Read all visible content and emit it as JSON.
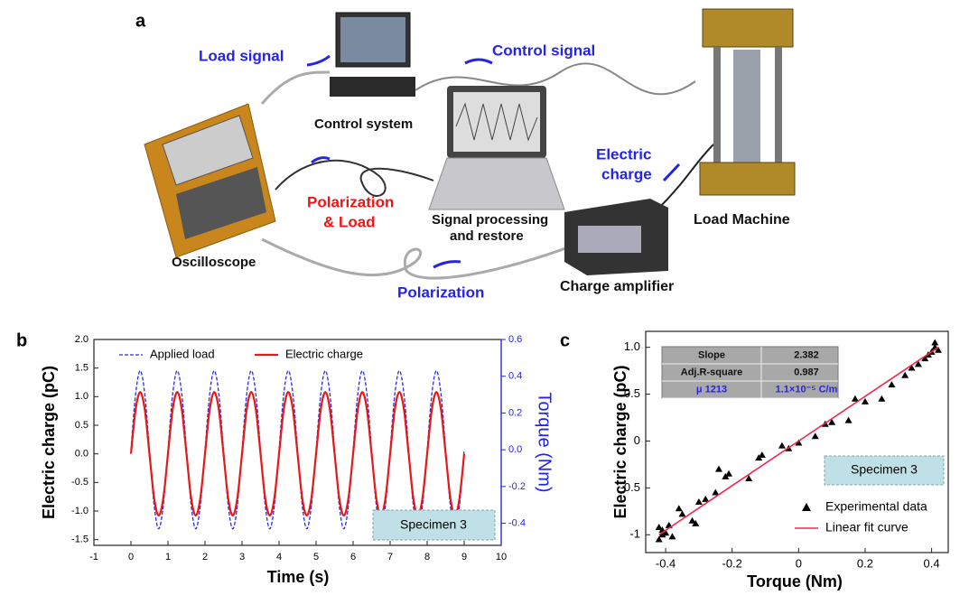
{
  "diagram": {
    "panel_label": "a",
    "labels": {
      "load_signal": "Load signal",
      "control_signal": "Control signal",
      "control_system": "Control system",
      "electric_charge_1": "Electric",
      "electric_charge_2": "charge",
      "load_machine": "Load Machine",
      "polarization_load_1": "Polarization",
      "polarization_load_2": "& Load",
      "signal_processing_1": "Signal processing",
      "signal_processing_2": "and restore",
      "oscilloscope": "Oscilloscope",
      "charge_amplifier": "Charge amplifier",
      "polarization": "Polarization"
    }
  },
  "chart_data": [
    {
      "type": "line",
      "panel_label": "b",
      "xlabel": "Time (s)",
      "ylabel": "Electric charge (pC)",
      "y2label": "Torque (Nm)",
      "annotation": "Specimen 3",
      "legend": "upper left",
      "x": [
        0,
        0.125,
        0.25,
        0.375,
        0.5,
        0.625,
        0.75,
        0.875,
        1,
        1.125,
        1.25,
        1.375,
        1.5,
        1.625,
        1.75,
        1.875,
        2,
        2.125,
        2.25,
        2.375,
        2.5,
        2.625,
        2.75,
        2.875,
        3,
        3.125,
        3.25,
        3.375,
        3.5,
        3.625,
        3.75,
        3.875,
        4,
        4.125,
        4.25,
        4.375,
        4.5,
        4.625,
        4.75,
        4.875,
        5,
        5.125,
        5.25,
        5.375,
        5.5,
        5.625,
        5.75,
        5.875,
        6,
        6.125,
        6.25,
        6.375,
        6.5,
        6.625,
        6.75,
        6.875,
        7,
        7.125,
        7.25,
        7.375,
        7.5,
        7.625,
        7.75,
        7.875,
        8,
        8.125,
        8.25,
        8.375,
        8.5,
        8.625,
        8.75,
        8.875,
        9
      ],
      "series": [
        {
          "name": "Applied load",
          "color": "#2a2ae8",
          "dashed": true,
          "axis": "y2",
          "values": [
            0,
            0.3,
            0.43,
            0.3,
            0,
            -0.3,
            -0.43,
            -0.3,
            0,
            0.3,
            0.43,
            0.3,
            0,
            -0.3,
            -0.43,
            -0.3,
            0,
            0.3,
            0.43,
            0.3,
            0,
            -0.3,
            -0.43,
            -0.3,
            0,
            0.3,
            0.43,
            0.3,
            0,
            -0.3,
            -0.43,
            -0.3,
            0,
            0.3,
            0.43,
            0.3,
            0,
            -0.3,
            -0.43,
            -0.3,
            0,
            0.3,
            0.43,
            0.3,
            0,
            -0.3,
            -0.43,
            -0.3,
            0,
            0.3,
            0.43,
            0.3,
            0,
            -0.3,
            -0.43,
            -0.3,
            0,
            0.3,
            0.43,
            0.3,
            0,
            -0.3,
            -0.43,
            -0.3,
            0,
            0.3,
            0.43,
            0.3,
            0,
            -0.3,
            -0.43,
            -0.3,
            0
          ]
        },
        {
          "name": "Electric charge",
          "color": "#e81818",
          "dashed": false,
          "values": [
            0,
            0.77,
            1.08,
            0.77,
            0,
            -0.77,
            -1.08,
            -0.77,
            0,
            0.77,
            1.08,
            0.77,
            0,
            -0.77,
            -1.08,
            -0.77,
            0,
            0.77,
            1.08,
            0.77,
            0,
            -0.77,
            -1.08,
            -0.77,
            0,
            0.77,
            1.08,
            0.77,
            0,
            -0.77,
            -1.08,
            -0.77,
            0,
            0.77,
            1.08,
            0.77,
            0,
            -0.77,
            -1.08,
            -0.77,
            0,
            0.77,
            1.08,
            0.77,
            0,
            -0.77,
            -1.08,
            -0.77,
            0,
            0.77,
            1.08,
            0.77,
            0,
            -0.77,
            -1.08,
            -0.77,
            0,
            0.77,
            1.08,
            0.77,
            0,
            -0.77,
            -1.08,
            -0.77,
            0,
            0.77,
            1.08,
            0.77,
            0,
            -0.77,
            -1.08,
            -0.77,
            0
          ]
        }
      ],
      "xlim": [
        -1,
        10
      ],
      "xticks": [
        -1,
        0,
        1,
        2,
        3,
        4,
        5,
        6,
        7,
        8,
        9,
        10
      ],
      "ylim": [
        -1.6,
        2.0
      ],
      "yticks": [
        -1.5,
        {
          "value": -1,
          "label": "-1.0"
        },
        -0.5,
        {
          "value": 0,
          "label": "0.0"
        },
        0.5,
        {
          "value": 1,
          "label": "1.0"
        },
        1.5,
        {
          "value": 2,
          "label": "2.0"
        }
      ],
      "y2lim": [
        -0.52,
        0.6
      ],
      "y2ticks": [
        -0.4,
        -0.2,
        {
          "value": 0,
          "label": "0.0"
        },
        0.2,
        0.4,
        0.6
      ]
    },
    {
      "type": "scatter",
      "panel_label": "c",
      "xlabel": "Torque (Nm)",
      "ylabel": "Electric charge (pC)",
      "annotation": "Specimen 3",
      "legend": "lower right",
      "table": {
        "rows": [
          [
            "Slope",
            "2.382"
          ],
          [
            "Adj.R-square",
            "0.987"
          ],
          [
            "μ 1213",
            "1.1×10⁻⁵ C/m"
          ]
        ]
      },
      "series": [
        {
          "name": "Experimental data",
          "color": "#000000",
          "marker": "triangle",
          "x": [
            -0.42,
            -0.41,
            -0.42,
            -0.4,
            -0.39,
            -0.41,
            -0.38,
            -0.36,
            -0.35,
            -0.32,
            -0.31,
            -0.3,
            -0.28,
            -0.25,
            -0.24,
            -0.22,
            -0.21,
            -0.15,
            -0.12,
            -0.11,
            -0.05,
            -0.03,
            0,
            0.05,
            0.08,
            0.1,
            0.15,
            0.17,
            0.2,
            0.25,
            0.28,
            0.32,
            0.34,
            0.36,
            0.38,
            0.39,
            0.4,
            0.41,
            0.41,
            0.42
          ],
          "values": [
            -1.05,
            -0.95,
            -0.92,
            -0.98,
            -0.9,
            -1,
            -1.02,
            -0.72,
            -0.78,
            -0.85,
            -0.88,
            -0.65,
            -0.62,
            -0.55,
            -0.3,
            -0.38,
            -0.35,
            -0.4,
            -0.18,
            -0.15,
            -0.05,
            -0.08,
            -0.02,
            0.05,
            0.18,
            0.2,
            0.22,
            0.45,
            0.42,
            0.45,
            0.6,
            0.7,
            0.78,
            0.82,
            0.88,
            0.92,
            0.95,
            1,
            1.05,
            0.97
          ]
        },
        {
          "name": "Linear fit curve",
          "color": "#f0284a",
          "marker": "line",
          "x": [
            -0.42,
            0.42
          ],
          "values": [
            -1,
            1
          ]
        }
      ],
      "xlim": [
        -0.46,
        0.45
      ],
      "xticks": [
        -0.4,
        -0.2,
        0,
        0.2,
        0.4
      ],
      "ylim": [
        -1.19,
        1.17
      ],
      "yticks": [
        -1,
        -0.5,
        0,
        0.5,
        {
          "value": 1,
          "label": "1.0"
        }
      ]
    }
  ]
}
